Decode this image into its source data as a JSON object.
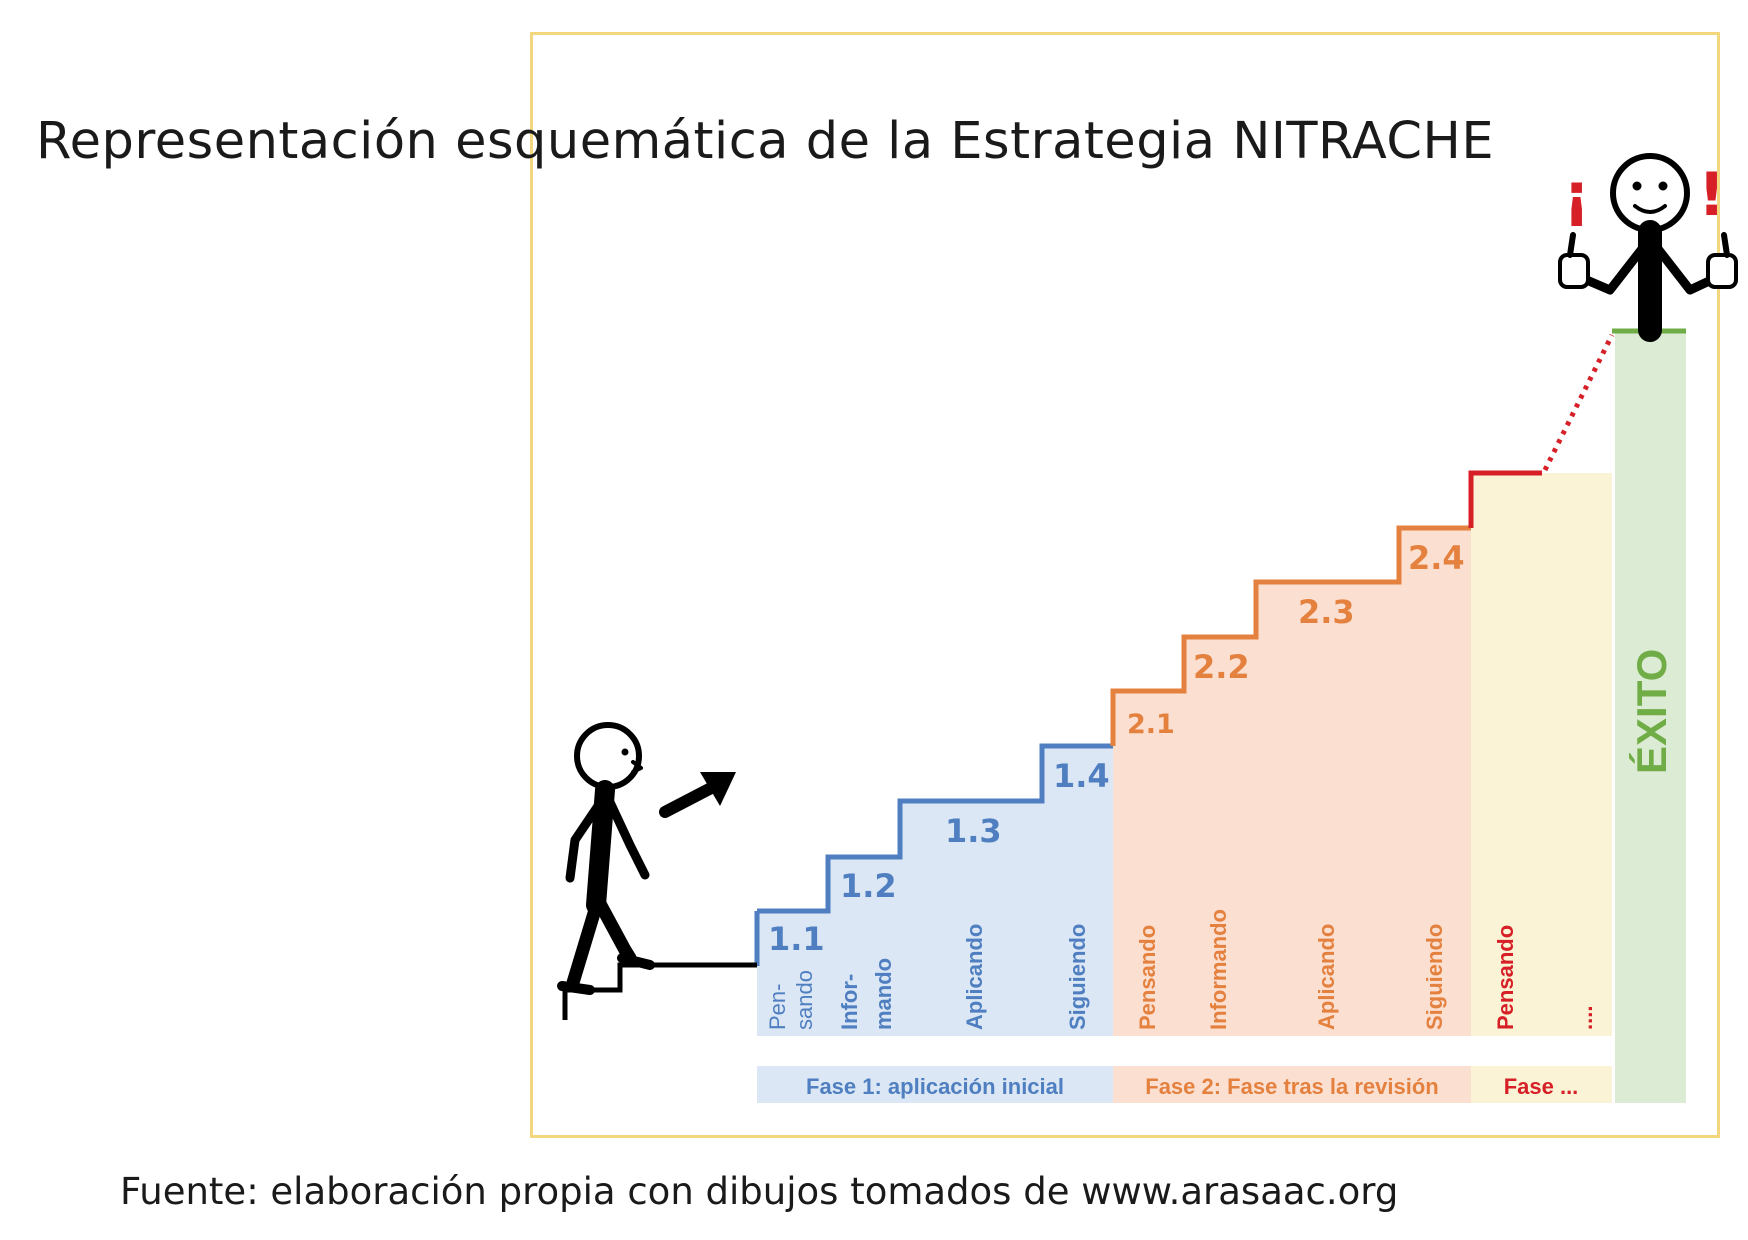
{
  "title": "Representación esquemática de la Estrategia NITRACHE",
  "source": "Fuente: elaboración propia con dibujos tomados de www.arasaac.org",
  "colors": {
    "phase1": "#4f7fc0",
    "phase1_fill": "#dbe7f5",
    "phase2": "#e5813f",
    "phase2_fill": "#fbe0d2",
    "phase3": "#d61f26",
    "phase3_fill": "#fbf3d5",
    "success": "#70ad47",
    "success_fill": "#dcebd3",
    "frame": "#f2d77e"
  },
  "steps": [
    {
      "label": "1.1",
      "activity": [
        "Pen-",
        "sando"
      ],
      "phase": 1
    },
    {
      "label": "1.2",
      "activity": [
        "Infor-",
        "mando"
      ],
      "phase": 1
    },
    {
      "label": "1.3",
      "activity": [
        "Aplicando"
      ],
      "phase": 1
    },
    {
      "label": "1.4",
      "activity": [
        "Siguiendo"
      ],
      "phase": 1
    },
    {
      "label": "2.1",
      "activity": [
        "Pensando"
      ],
      "phase": 2
    },
    {
      "label": "2.2",
      "activity": [
        "Informando"
      ],
      "phase": 2
    },
    {
      "label": "2.3",
      "activity": [
        "Aplicando"
      ],
      "phase": 2
    },
    {
      "label": "2.4",
      "activity": [
        "Siguiendo"
      ],
      "phase": 2
    },
    {
      "label": "",
      "activity": [
        "Pensando"
      ],
      "phase": 3
    },
    {
      "label": "",
      "activity": [
        "...."
      ],
      "phase": 3
    }
  ],
  "phases": [
    {
      "label": "Fase 1: aplicación inicial"
    },
    {
      "label": "Fase 2: Fase tras la revisión"
    },
    {
      "label": "Fase ..."
    }
  ],
  "success_label": "ÉXITO",
  "exclamations": {
    "open": "¡",
    "close": "!"
  }
}
